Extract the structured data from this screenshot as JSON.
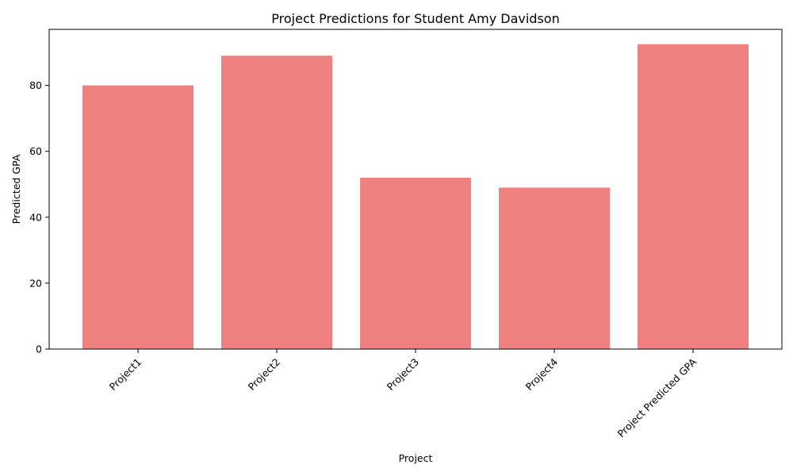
{
  "chart_data": {
    "type": "bar",
    "title": "Project Predictions for Student Amy Davidson",
    "xlabel": "Project",
    "ylabel": "Predicted GPA",
    "categories": [
      "Project1",
      "Project2",
      "Project3",
      "Project4",
      "Project Predicted GPA"
    ],
    "values": [
      80,
      89,
      52,
      49,
      92.5
    ],
    "ylim": [
      0,
      97
    ],
    "yticks": [
      0,
      20,
      40,
      60,
      80
    ],
    "ytick_labels": [
      "0",
      "20",
      "40",
      "60",
      "80"
    ],
    "xtick_rotation": 45,
    "grid": false,
    "legend": "none",
    "bar_color": "#f08080",
    "axis_color": "#000000"
  }
}
